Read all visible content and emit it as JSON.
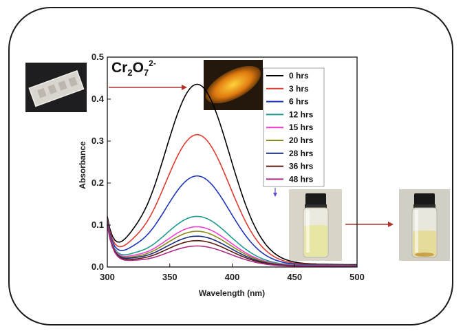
{
  "chart_data": {
    "type": "line",
    "title": "",
    "annotation": {
      "base": "Cr",
      "sub1": "2",
      "mid": "O",
      "sub2": "7",
      "sup": "2-"
    },
    "xlabel": "Wavelength (nm)",
    "ylabel": "Absorbance",
    "xlim": [
      300,
      500
    ],
    "ylim": [
      0.0,
      0.5
    ],
    "xticks": [
      "300",
      "350",
      "400",
      "450",
      "500"
    ],
    "yticks": [
      "0.0",
      "0.1",
      "0.2",
      "0.3",
      "0.4",
      "0.5"
    ],
    "peak_x": 372,
    "legend_position": "top-right",
    "series": [
      {
        "name": "0 hrs",
        "color": "#000000",
        "peak": 0.425,
        "tail": 0.015,
        "base": 0.015
      },
      {
        "name": "3 hrs",
        "color": "#e03a2e",
        "peak": 0.307,
        "tail": 0.012,
        "base": 0.012
      },
      {
        "name": "6 hrs",
        "color": "#1f35b8",
        "peak": 0.21,
        "tail": 0.01,
        "base": 0.01
      },
      {
        "name": "12 hrs",
        "color": "#1e9a8e",
        "peak": 0.115,
        "tail": 0.008,
        "base": 0.008
      },
      {
        "name": "15 hrs",
        "color": "#ee3fd6",
        "peak": 0.091,
        "tail": 0.007,
        "base": 0.007
      },
      {
        "name": "20 hrs",
        "color": "#8a8a1a",
        "peak": 0.081,
        "tail": 0.006,
        "base": 0.006
      },
      {
        "name": "28 hrs",
        "color": "#1a2a7a",
        "peak": 0.07,
        "tail": 0.006,
        "base": 0.005
      },
      {
        "name": "36 hrs",
        "color": "#5a1a14",
        "peak": 0.06,
        "tail": 0.005,
        "base": 0.004
      },
      {
        "name": "48 hrs",
        "color": "#b02a86",
        "peak": 0.048,
        "tail": 0.005,
        "base": 0.003
      }
    ]
  },
  "arrow_color": "#b0302a"
}
